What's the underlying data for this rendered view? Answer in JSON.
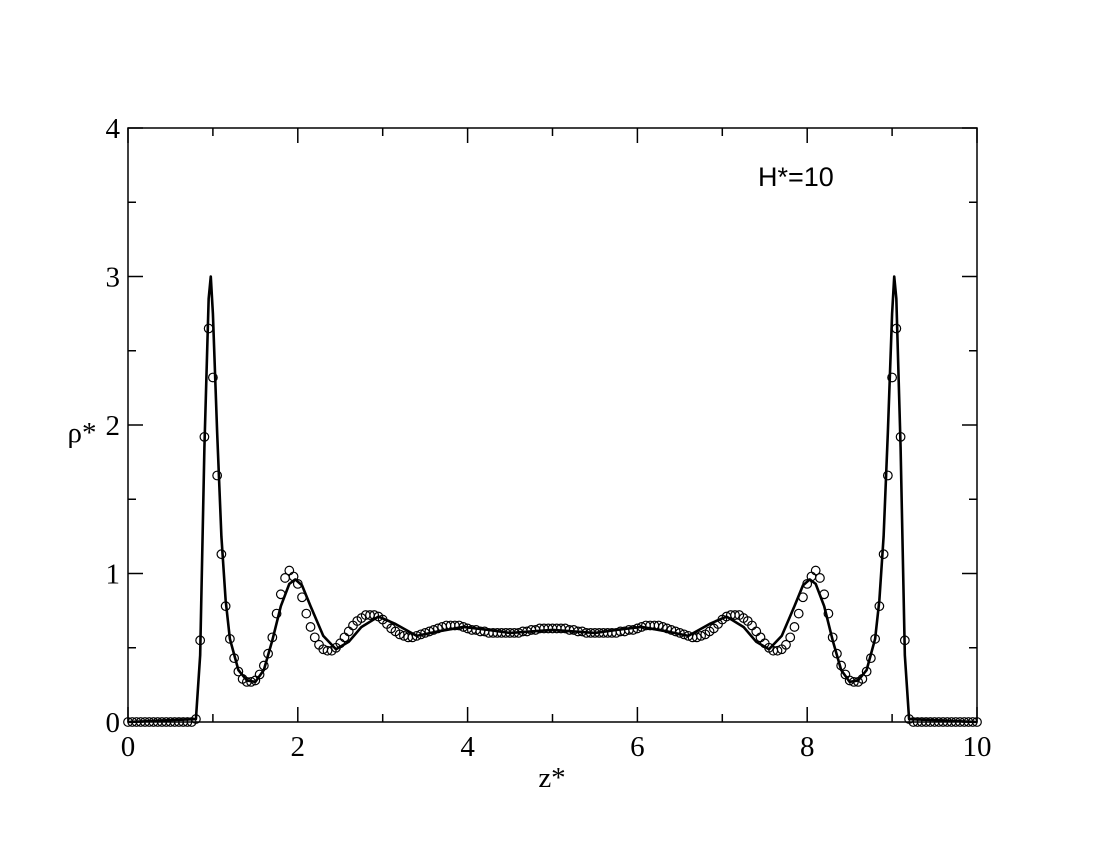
{
  "chart_data": {
    "type": "line",
    "xlabel": "z*",
    "ylabel": "ρ*",
    "annotation": "H*=10",
    "xlim": [
      0,
      10
    ],
    "ylim": [
      0,
      4
    ],
    "xticks": [
      0,
      2,
      4,
      6,
      8,
      10
    ],
    "yticks": [
      0,
      1,
      2,
      3,
      4
    ],
    "xminorticks": [
      1,
      3,
      5,
      7,
      9
    ],
    "yminorticks": [
      0.5,
      1.5,
      2.5,
      3.5
    ],
    "series": [
      {
        "kind": "line",
        "color": "#000000",
        "x": [
          0,
          0.8,
          0.85,
          0.9,
          0.95,
          0.975,
          1.0,
          1.05,
          1.1,
          1.15,
          1.2,
          1.3,
          1.4,
          1.5,
          1.6,
          1.7,
          1.8,
          1.9,
          1.97,
          2.05,
          2.15,
          2.3,
          2.45,
          2.6,
          2.75,
          2.95,
          3.15,
          3.4,
          3.65,
          3.95,
          4.25,
          4.5,
          4.75,
          5.0,
          5.25,
          5.5,
          5.75,
          6.05,
          6.35,
          6.6,
          6.85,
          7.05,
          7.25,
          7.4,
          7.55,
          7.7,
          7.85,
          7.95,
          8.03,
          8.1,
          8.2,
          8.3,
          8.4,
          8.5,
          8.6,
          8.7,
          8.8,
          8.85,
          8.9,
          8.95,
          9.0,
          9.025,
          9.05,
          9.1,
          9.15,
          9.2,
          10
        ],
        "values": [
          0,
          0.02,
          0.45,
          1.85,
          2.85,
          3.0,
          2.75,
          1.95,
          1.25,
          0.82,
          0.56,
          0.35,
          0.28,
          0.27,
          0.35,
          0.55,
          0.78,
          0.93,
          0.96,
          0.92,
          0.78,
          0.58,
          0.49,
          0.54,
          0.64,
          0.71,
          0.66,
          0.58,
          0.61,
          0.64,
          0.62,
          0.6,
          0.61,
          0.62,
          0.61,
          0.6,
          0.62,
          0.64,
          0.61,
          0.58,
          0.66,
          0.71,
          0.64,
          0.54,
          0.49,
          0.58,
          0.78,
          0.92,
          0.96,
          0.93,
          0.78,
          0.55,
          0.35,
          0.27,
          0.28,
          0.35,
          0.56,
          0.82,
          1.25,
          1.95,
          2.75,
          3.0,
          2.85,
          1.85,
          0.45,
          0.02,
          0
        ]
      },
      {
        "kind": "scatter",
        "color": "#000000",
        "x": [
          0,
          0.05,
          0.1,
          0.15,
          0.2,
          0.25,
          0.3,
          0.35,
          0.4,
          0.45,
          0.5,
          0.55,
          0.6,
          0.65,
          0.7,
          0.75,
          0.8,
          0.85,
          0.9,
          0.95,
          1.0,
          1.05,
          1.1,
          1.15,
          1.2,
          1.25,
          1.3,
          1.35,
          1.4,
          1.45,
          1.5,
          1.55,
          1.6,
          1.65,
          1.7,
          1.75,
          1.8,
          1.85,
          1.9,
          1.95,
          2.0,
          2.05,
          2.1,
          2.15,
          2.2,
          2.25,
          2.3,
          2.35,
          2.4,
          2.45,
          2.5,
          2.55,
          2.6,
          2.65,
          2.7,
          2.75,
          2.8,
          2.85,
          2.9,
          2.95,
          3.0,
          3.05,
          3.1,
          3.15,
          3.2,
          3.25,
          3.3,
          3.35,
          3.4,
          3.45,
          3.5,
          3.55,
          3.6,
          3.65,
          3.7,
          3.75,
          3.8,
          3.85,
          3.9,
          3.95,
          4.0,
          4.05,
          4.1,
          4.15,
          4.2,
          4.25,
          4.3,
          4.35,
          4.4,
          4.45,
          4.5,
          4.55,
          4.6,
          4.65,
          4.7,
          4.75,
          4.8,
          4.85,
          4.9,
          4.95,
          5.0,
          5.05,
          5.1,
          5.15,
          5.2,
          5.25,
          5.3,
          5.35,
          5.4,
          5.45,
          5.5,
          5.55,
          5.6,
          5.65,
          5.7,
          5.75,
          5.8,
          5.85,
          5.9,
          5.95,
          6.0,
          6.05,
          6.1,
          6.15,
          6.2,
          6.25,
          6.3,
          6.35,
          6.4,
          6.45,
          6.5,
          6.55,
          6.6,
          6.65,
          6.7,
          6.75,
          6.8,
          6.85,
          6.9,
          6.95,
          7.0,
          7.05,
          7.1,
          7.15,
          7.2,
          7.25,
          7.3,
          7.35,
          7.4,
          7.45,
          7.5,
          7.55,
          7.6,
          7.65,
          7.7,
          7.75,
          7.8,
          7.85,
          7.9,
          7.95,
          8.0,
          8.05,
          8.1,
          8.15,
          8.2,
          8.25,
          8.3,
          8.35,
          8.4,
          8.45,
          8.5,
          8.55,
          8.6,
          8.65,
          8.7,
          8.75,
          8.8,
          8.85,
          8.9,
          8.95,
          9.0,
          9.05,
          9.1,
          9.15,
          9.2,
          9.25,
          9.3,
          9.35,
          9.4,
          9.45,
          9.5,
          9.55,
          9.6,
          9.65,
          9.7,
          9.75,
          9.8,
          9.85,
          9.9,
          9.95,
          10
        ],
        "values": [
          0,
          0,
          0,
          0,
          0,
          0,
          0,
          0,
          0,
          0,
          0,
          0,
          0,
          0,
          0,
          0,
          0.02,
          0.55,
          1.92,
          2.65,
          2.32,
          1.66,
          1.13,
          0.78,
          0.56,
          0.43,
          0.34,
          0.29,
          0.27,
          0.27,
          0.28,
          0.32,
          0.38,
          0.46,
          0.57,
          0.73,
          0.86,
          0.97,
          1.02,
          0.98,
          0.93,
          0.84,
          0.73,
          0.64,
          0.57,
          0.52,
          0.49,
          0.48,
          0.48,
          0.5,
          0.53,
          0.57,
          0.61,
          0.65,
          0.68,
          0.7,
          0.72,
          0.72,
          0.72,
          0.71,
          0.69,
          0.66,
          0.63,
          0.61,
          0.59,
          0.58,
          0.57,
          0.57,
          0.58,
          0.59,
          0.6,
          0.61,
          0.62,
          0.63,
          0.64,
          0.65,
          0.65,
          0.65,
          0.65,
          0.64,
          0.63,
          0.62,
          0.62,
          0.61,
          0.61,
          0.6,
          0.6,
          0.6,
          0.6,
          0.6,
          0.6,
          0.6,
          0.6,
          0.61,
          0.61,
          0.62,
          0.62,
          0.63,
          0.63,
          0.63,
          0.63,
          0.63,
          0.63,
          0.63,
          0.62,
          0.62,
          0.61,
          0.61,
          0.6,
          0.6,
          0.6,
          0.6,
          0.6,
          0.6,
          0.6,
          0.6,
          0.61,
          0.61,
          0.62,
          0.62,
          0.63,
          0.64,
          0.65,
          0.65,
          0.65,
          0.65,
          0.64,
          0.63,
          0.62,
          0.61,
          0.6,
          0.59,
          0.58,
          0.57,
          0.57,
          0.58,
          0.59,
          0.61,
          0.63,
          0.66,
          0.69,
          0.71,
          0.72,
          0.72,
          0.72,
          0.7,
          0.68,
          0.65,
          0.61,
          0.57,
          0.53,
          0.5,
          0.48,
          0.48,
          0.49,
          0.52,
          0.57,
          0.64,
          0.73,
          0.84,
          0.93,
          0.98,
          1.02,
          0.97,
          0.86,
          0.73,
          0.57,
          0.46,
          0.38,
          0.32,
          0.28,
          0.27,
          0.27,
          0.29,
          0.34,
          0.43,
          0.56,
          0.78,
          1.13,
          1.66,
          2.32,
          2.65,
          1.92,
          0.55,
          0.02,
          0,
          0,
          0,
          0,
          0,
          0,
          0,
          0,
          0,
          0,
          0,
          0,
          0,
          0,
          0,
          0
        ]
      }
    ]
  }
}
